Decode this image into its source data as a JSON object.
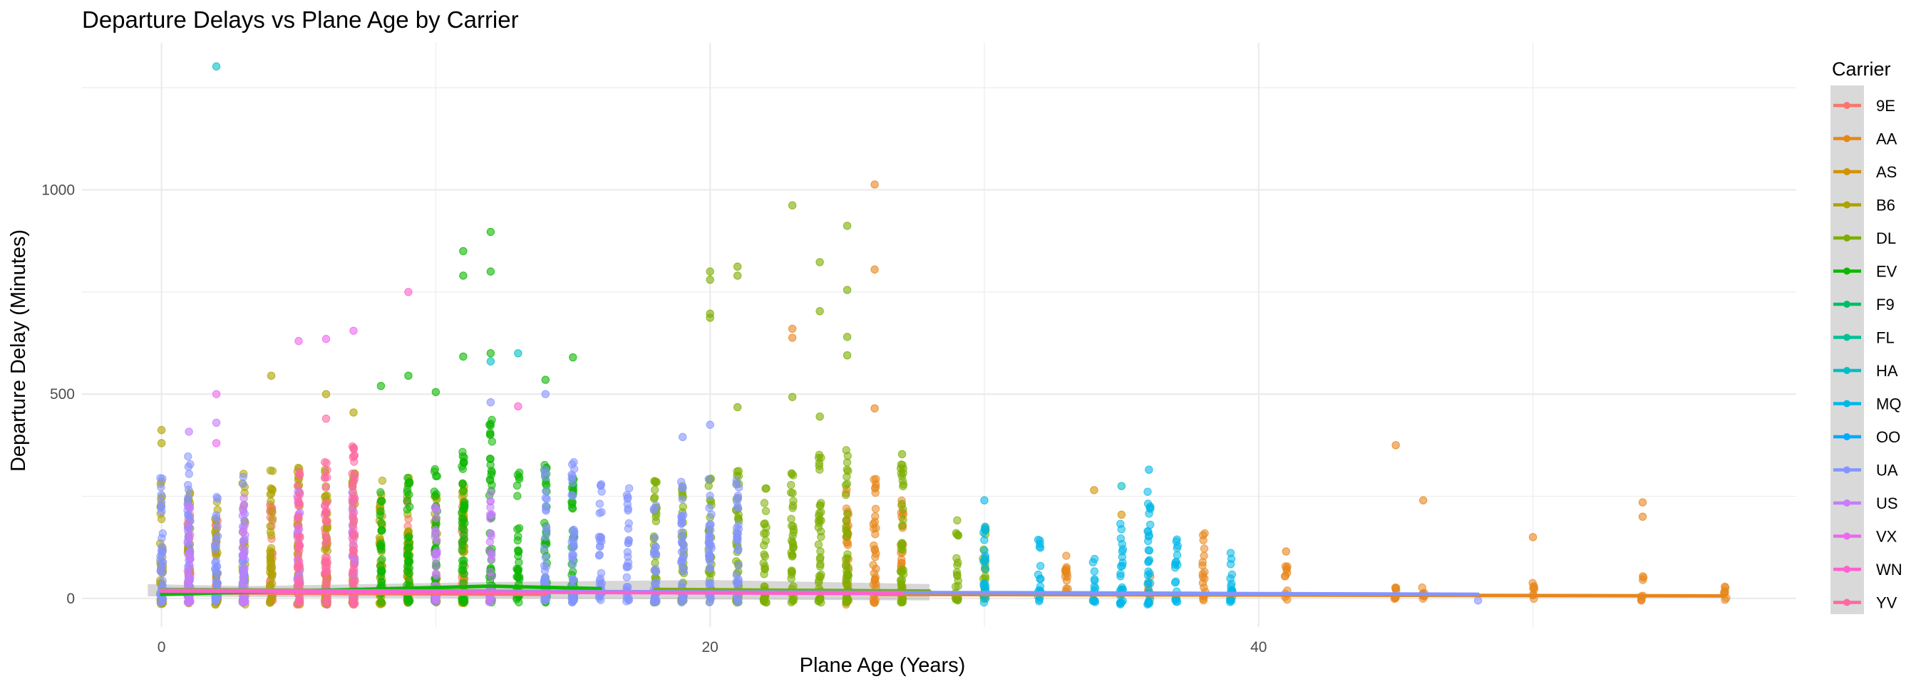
{
  "chart_data": {
    "type": "scatter",
    "title": "Departure Delays vs Plane Age by Carrier",
    "xlabel": "Plane Age (Years)",
    "ylabel": "Departure Delay (Minutes)",
    "xlim": [
      -2.9,
      59.6
    ],
    "ylim": [
      -70,
      1360
    ],
    "x_ticks": [
      0,
      20,
      40
    ],
    "y_ticks": [
      0,
      500,
      1000
    ],
    "grid": true,
    "legend": {
      "title": "Carrier",
      "position": "right"
    },
    "series": [
      {
        "name": "9E",
        "color": "#F8766D",
        "columns": [
          [
            1,
            -10,
            240
          ],
          [
            2,
            -10,
            230
          ],
          [
            4,
            -10,
            250
          ],
          [
            6,
            -10,
            230
          ],
          [
            9,
            -10,
            240
          ],
          [
            11,
            -10,
            250
          ]
        ],
        "outliers": [],
        "trend": [
          [
            1,
            14
          ],
          [
            14,
            10
          ]
        ]
      },
      {
        "name": "AA",
        "color": "#E7861B",
        "columns": [
          [
            25,
            -15,
            280
          ],
          [
            26,
            -12,
            300
          ],
          [
            27,
            -10,
            250
          ],
          [
            33,
            -8,
            120
          ],
          [
            36,
            -6,
            60
          ],
          [
            38,
            -6,
            160
          ],
          [
            41,
            -5,
            90
          ],
          [
            45,
            -5,
            30
          ],
          [
            46,
            -5,
            30
          ],
          [
            50,
            -5,
            40
          ],
          [
            54,
            -5,
            60
          ],
          [
            57,
            -5,
            30
          ]
        ],
        "outliers": [
          [
            26,
            1013
          ],
          [
            26,
            805
          ],
          [
            23,
            660
          ],
          [
            23,
            638
          ],
          [
            26,
            465
          ],
          [
            45,
            375
          ],
          [
            46,
            240
          ],
          [
            54,
            235
          ],
          [
            54,
            200
          ],
          [
            50,
            150
          ],
          [
            41,
            115
          ]
        ],
        "trend": [
          [
            26,
            10
          ],
          [
            57,
            6
          ]
        ]
      },
      {
        "name": "AS",
        "color": "#D39200",
        "columns": [],
        "outliers": [
          [
            34,
            265
          ],
          [
            35,
            205
          ]
        ],
        "trend": []
      },
      {
        "name": "B6",
        "color": "#AEA200",
        "columns": [
          [
            0,
            -15,
            300
          ],
          [
            1,
            -15,
            260
          ],
          [
            2,
            -15,
            240
          ],
          [
            3,
            -15,
            330
          ],
          [
            4,
            -15,
            330
          ],
          [
            5,
            -15,
            320
          ],
          [
            6,
            -15,
            330
          ],
          [
            7,
            -15,
            310
          ],
          [
            8,
            -15,
            330
          ],
          [
            9,
            -12,
            300
          ],
          [
            10,
            -12,
            260
          ],
          [
            11,
            -12,
            300
          ]
        ],
        "outliers": [
          [
            0,
            412
          ],
          [
            0,
            380
          ],
          [
            4,
            545
          ],
          [
            6,
            500
          ],
          [
            7,
            455
          ]
        ],
        "trend": [
          [
            0,
            22
          ],
          [
            12,
            18
          ]
        ]
      },
      {
        "name": "DL",
        "color": "#7CAE00",
        "columns": [
          [
            18,
            -10,
            300
          ],
          [
            19,
            -10,
            280
          ],
          [
            20,
            -10,
            300
          ],
          [
            21,
            -10,
            320
          ],
          [
            22,
            -10,
            300
          ],
          [
            23,
            -10,
            330
          ],
          [
            24,
            -10,
            360
          ],
          [
            25,
            -10,
            370
          ],
          [
            27,
            -10,
            330
          ],
          [
            29,
            -5,
            200
          ],
          [
            30,
            -5,
            180
          ]
        ],
        "outliers": [
          [
            23,
            962
          ],
          [
            25,
            912
          ],
          [
            24,
            823
          ],
          [
            20,
            800
          ],
          [
            21,
            812
          ],
          [
            20,
            780
          ],
          [
            21,
            790
          ],
          [
            25,
            755
          ],
          [
            24,
            703
          ],
          [
            20,
            697
          ],
          [
            20,
            687
          ],
          [
            25,
            640
          ],
          [
            25,
            595
          ],
          [
            21,
            468
          ],
          [
            23,
            493
          ],
          [
            24,
            445
          ],
          [
            27,
            353
          ]
        ],
        "trend": [
          [
            18,
            22
          ],
          [
            28,
            18
          ]
        ]
      },
      {
        "name": "EV",
        "color": "#0CB702",
        "columns": [
          [
            8,
            -10,
            300
          ],
          [
            9,
            -10,
            320
          ],
          [
            10,
            -10,
            350
          ],
          [
            11,
            -10,
            400
          ],
          [
            12,
            -10,
            440
          ],
          [
            13,
            -10,
            330
          ],
          [
            14,
            -10,
            330
          ],
          [
            15,
            -10,
            300
          ]
        ],
        "outliers": [
          [
            11,
            850
          ],
          [
            12,
            897
          ],
          [
            11,
            790
          ],
          [
            12,
            800
          ],
          [
            12,
            600
          ],
          [
            11,
            592
          ],
          [
            14,
            535
          ],
          [
            15,
            590
          ],
          [
            9,
            545
          ],
          [
            8,
            520
          ],
          [
            10,
            505
          ]
        ],
        "trend": [
          [
            0,
            10
          ],
          [
            12,
            30
          ],
          [
            16,
            24
          ]
        ]
      },
      {
        "name": "F9",
        "color": "#00BE67",
        "columns": [],
        "outliers": [],
        "trend": []
      },
      {
        "name": "FL",
        "color": "#00C19A",
        "columns": [],
        "outliers": [],
        "trend": []
      },
      {
        "name": "HA",
        "color": "#00BFC4",
        "columns": [],
        "outliers": [
          [
            2,
            1302
          ],
          [
            13,
            600
          ],
          [
            12,
            580
          ],
          [
            35,
            275
          ]
        ],
        "trend": []
      },
      {
        "name": "MQ",
        "color": "#00B8E7",
        "columns": [
          [
            30,
            -10,
            180
          ],
          [
            32,
            -10,
            150
          ],
          [
            34,
            -10,
            120
          ],
          [
            35,
            -15,
            220
          ],
          [
            36,
            -15,
            270
          ],
          [
            37,
            -10,
            160
          ],
          [
            39,
            -10,
            150
          ]
        ],
        "outliers": [
          [
            36,
            315
          ],
          [
            30,
            240
          ]
        ],
        "trend": [
          [
            30,
            14
          ],
          [
            39,
            12
          ]
        ]
      },
      {
        "name": "OO",
        "color": "#00A9FF",
        "columns": [],
        "outliers": [],
        "trend": []
      },
      {
        "name": "UA",
        "color": "#8494FF",
        "columns": [
          [
            0,
            -10,
            320
          ],
          [
            1,
            -10,
            350
          ],
          [
            2,
            -10,
            280
          ],
          [
            3,
            -10,
            300
          ],
          [
            14,
            -10,
            320
          ],
          [
            15,
            -10,
            350
          ],
          [
            16,
            -10,
            290
          ],
          [
            17,
            -10,
            270
          ],
          [
            18,
            -10,
            240
          ],
          [
            19,
            -10,
            300
          ],
          [
            20,
            -10,
            310
          ],
          [
            21,
            -10,
            290
          ]
        ],
        "outliers": [
          [
            12,
            480
          ],
          [
            14,
            500
          ],
          [
            19,
            395
          ],
          [
            20,
            425
          ],
          [
            48,
            -5
          ]
        ],
        "trend": [
          [
            0,
            20
          ],
          [
            48,
            10
          ]
        ]
      },
      {
        "name": "US",
        "color": "#C77CFF",
        "columns": [
          [
            1,
            -10,
            250
          ],
          [
            3,
            -10,
            250
          ],
          [
            5,
            -10,
            280
          ],
          [
            7,
            -10,
            260
          ],
          [
            10,
            -10,
            240
          ],
          [
            12,
            -10,
            260
          ]
        ],
        "outliers": [
          [
            2,
            430
          ],
          [
            1,
            408
          ]
        ],
        "trend": []
      },
      {
        "name": "VX",
        "color": "#ED68ED",
        "columns": [],
        "outliers": [
          [
            2,
            500
          ],
          [
            5,
            630
          ],
          [
            6,
            635
          ],
          [
            7,
            655
          ],
          [
            2,
            380
          ]
        ],
        "trend": []
      },
      {
        "name": "WN",
        "color": "#FF61CC",
        "columns": [],
        "outliers": [
          [
            9,
            750
          ],
          [
            13,
            470
          ]
        ],
        "trend": [
          [
            0,
            18
          ],
          [
            27,
            12
          ]
        ]
      },
      {
        "name": "YV",
        "color": "#FF68A1",
        "columns": [
          [
            5,
            -15,
            330
          ],
          [
            6,
            -15,
            340
          ],
          [
            7,
            -15,
            380
          ]
        ],
        "outliers": [
          [
            6,
            440
          ]
        ],
        "trend": []
      }
    ]
  }
}
